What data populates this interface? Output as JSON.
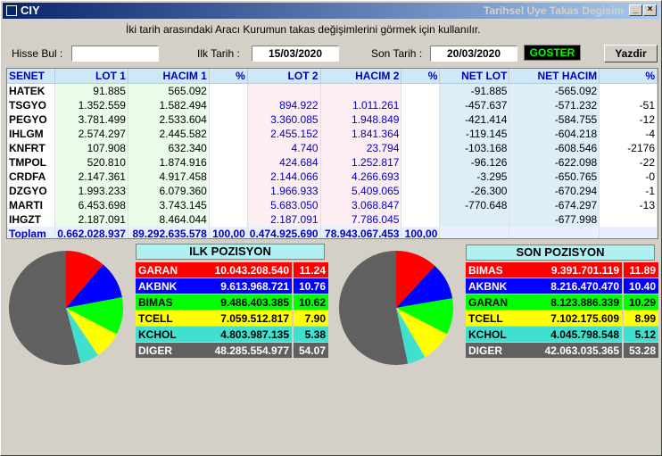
{
  "window": {
    "app_title": "CIY",
    "title": "Tarihsel Uye Takas Degisim"
  },
  "instructions": "İki tarih arasındaki  Aracı Kurumun takas değişimlerini görmek için kullanılır.",
  "filters": {
    "hisse_label": "Hisse Bul :",
    "hisse_value": "",
    "ilk_label": "Ilk Tarih :",
    "ilk_value": "15/03/2020",
    "son_label": "Son Tarih :",
    "son_value": "20/03/2020",
    "goster_label": "GOSTER",
    "yazdir_label": "Yazdir"
  },
  "table": {
    "headers": [
      "SENET",
      "LOT 1",
      "HACIM 1",
      "%",
      "LOT 2",
      "HACIM 2",
      "%",
      "NET LOT",
      "NET HACIM",
      "%"
    ],
    "rows": [
      [
        "HATEK",
        "91.885",
        "565.092",
        "",
        "",
        "",
        "",
        "-91.885",
        "-565.092",
        ""
      ],
      [
        "TSGYO",
        "1.352.559",
        "1.582.494",
        "",
        "894.922",
        "1.011.261",
        "",
        "-457.637",
        "-571.232",
        "-51"
      ],
      [
        "PEGYO",
        "3.781.499",
        "2.533.604",
        "",
        "3.360.085",
        "1.948.849",
        "",
        "-421.414",
        "-584.755",
        "-12"
      ],
      [
        "IHLGM",
        "2.574.297",
        "2.445.582",
        "",
        "2.455.152",
        "1.841.364",
        "",
        "-119.145",
        "-604.218",
        "-4"
      ],
      [
        "KNFRT",
        "107.908",
        "632.340",
        "",
        "4.740",
        "23.794",
        "",
        "-103.168",
        "-608.546",
        "-2176"
      ],
      [
        "TMPOL",
        "520.810",
        "1.874.916",
        "",
        "424.684",
        "1.252.817",
        "",
        "-96.126",
        "-622.098",
        "-22"
      ],
      [
        "CRDFA",
        "2.147.361",
        "4.917.458",
        "",
        "2.144.066",
        "4.266.693",
        "",
        "-3.295",
        "-650.765",
        "-0"
      ],
      [
        "DZGYO",
        "1.993.233",
        "6.079.360",
        "",
        "1.966.933",
        "5.409.065",
        "",
        "-26.300",
        "-670.294",
        "-1"
      ],
      [
        "MARTI",
        "6.453.698",
        "3.743.145",
        "",
        "5.683.050",
        "3.068.847",
        "",
        "-770.648",
        "-674.297",
        "-13"
      ],
      [
        "IHGZT",
        "2.187.091",
        "8.464.044",
        "",
        "2.187.091",
        "7.786.045",
        "",
        "",
        "-677.998",
        ""
      ]
    ],
    "total": [
      "Toplam",
      "0.662.028.937",
      "89.292.635.578",
      "100,00",
      "0.474.925.690",
      "78.943.067.453",
      "100,00",
      "",
      "",
      ""
    ]
  },
  "ilk_pozisyon": {
    "title": "ILK POZISYON",
    "rows": [
      {
        "name": "GARAN",
        "value": "10.043.208.540",
        "pct": "11.24",
        "pct_num": 11.24,
        "color": "#ff0000",
        "text": "#ffffff"
      },
      {
        "name": "AKBNK",
        "value": "9.613.968.721",
        "pct": "10.76",
        "pct_num": 10.76,
        "color": "#0000ff",
        "text": "#ffffff"
      },
      {
        "name": "BIMAS",
        "value": "9.486.403.385",
        "pct": "10.62",
        "pct_num": 10.62,
        "color": "#00ff00",
        "text": "#000000"
      },
      {
        "name": "TCELL",
        "value": "7.059.512.817",
        "pct": "7.90",
        "pct_num": 7.9,
        "color": "#ffff00",
        "text": "#000000"
      },
      {
        "name": "KCHOL",
        "value": "4.803.987.135",
        "pct": "5.38",
        "pct_num": 5.38,
        "color": "#40e0d0",
        "text": "#000000"
      },
      {
        "name": "DIGER",
        "value": "48.285.554.977",
        "pct": "54.07",
        "pct_num": 54.07,
        "color": "#606060",
        "text": "#ffffff"
      }
    ]
  },
  "son_pozisyon": {
    "title": "SON POZISYON",
    "rows": [
      {
        "name": "BIMAS",
        "value": "9.391.701.119",
        "pct": "11.89",
        "pct_num": 11.89,
        "color": "#ff0000",
        "text": "#ffffff"
      },
      {
        "name": "AKBNK",
        "value": "8.216.470.470",
        "pct": "10.40",
        "pct_num": 10.4,
        "color": "#0000ff",
        "text": "#ffffff"
      },
      {
        "name": "GARAN",
        "value": "8.123.886.339",
        "pct": "10.29",
        "pct_num": 10.29,
        "color": "#00ff00",
        "text": "#000000"
      },
      {
        "name": "TCELL",
        "value": "7.102.175.609",
        "pct": "8.99",
        "pct_num": 8.99,
        "color": "#ffff00",
        "text": "#000000"
      },
      {
        "name": "KCHOL",
        "value": "4.045.798.548",
        "pct": "5.12",
        "pct_num": 5.12,
        "color": "#40e0d0",
        "text": "#000000"
      },
      {
        "name": "DIGER",
        "value": "42.063.035.365",
        "pct": "53.28",
        "pct_num": 53.28,
        "color": "#606060",
        "text": "#ffffff"
      }
    ]
  }
}
